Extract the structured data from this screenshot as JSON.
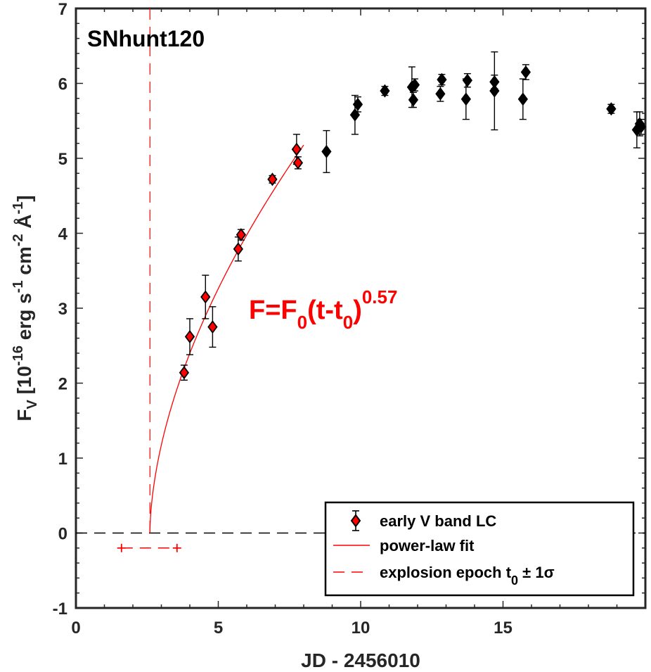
{
  "chart_data": {
    "type": "scatter",
    "title": "SNhunt120",
    "xlabel": "JD - 2456010",
    "ylabel_parts": {
      "main": "F",
      "sub": "V",
      "bracket": " [10",
      "exp1": "-16",
      "unit1": " erg s",
      "exp2": "-1",
      "unit2": " cm",
      "exp3": "-2",
      "unit3": " Å",
      "exp4": "-1",
      "close": "]"
    },
    "xlim": [
      0,
      20
    ],
    "ylim": [
      -1,
      7
    ],
    "xticks": [
      0,
      5,
      10,
      15
    ],
    "yticks": [
      -1,
      0,
      1,
      2,
      3,
      4,
      5,
      6,
      7
    ],
    "early_points": [
      {
        "x": 3.8,
        "y": 2.14,
        "err": 0.1
      },
      {
        "x": 4.0,
        "y": 2.62,
        "err": 0.24
      },
      {
        "x": 4.55,
        "y": 3.15,
        "err": 0.29
      },
      {
        "x": 4.8,
        "y": 2.75,
        "err": 0.27
      },
      {
        "x": 5.7,
        "y": 3.79,
        "err": 0.16
      },
      {
        "x": 5.8,
        "y": 3.98,
        "err": 0.07
      },
      {
        "x": 6.9,
        "y": 4.72,
        "err": 0.05
      },
      {
        "x": 7.75,
        "y": 5.12,
        "err": 0.2
      },
      {
        "x": 7.8,
        "y": 4.94,
        "err": 0.08
      }
    ],
    "late_points": [
      {
        "x": 8.8,
        "y": 5.09,
        "err": 0.28
      },
      {
        "x": 9.8,
        "y": 5.58,
        "err": 0.26
      },
      {
        "x": 9.9,
        "y": 5.72,
        "err": 0.1
      },
      {
        "x": 10.85,
        "y": 5.9,
        "err": 0.06
      },
      {
        "x": 11.8,
        "y": 5.95,
        "err": 0.27
      },
      {
        "x": 11.85,
        "y": 5.78,
        "err": 0.1
      },
      {
        "x": 11.9,
        "y": 5.98,
        "err": 0.08
      },
      {
        "x": 12.8,
        "y": 5.86,
        "err": 0.1
      },
      {
        "x": 12.85,
        "y": 6.05,
        "err": 0.07
      },
      {
        "x": 13.7,
        "y": 5.79,
        "err": 0.27
      },
      {
        "x": 13.75,
        "y": 6.04,
        "err": 0.09
      },
      {
        "x": 14.7,
        "y": 5.9,
        "err": 0.52
      },
      {
        "x": 14.7,
        "y": 6.02,
        "err": 0.09
      },
      {
        "x": 15.7,
        "y": 5.79,
        "err": 0.27
      },
      {
        "x": 15.8,
        "y": 6.15,
        "err": 0.1
      },
      {
        "x": 18.8,
        "y": 5.66,
        "err": 0.06
      },
      {
        "x": 19.7,
        "y": 5.38,
        "err": 0.24
      },
      {
        "x": 19.8,
        "y": 5.46,
        "err": 0.16
      },
      {
        "x": 19.85,
        "y": 5.42,
        "err": 0.1
      }
    ],
    "fit": {
      "t0": 2.6,
      "F0": 1.98,
      "exponent": 0.57,
      "x_end": 8.0
    },
    "explosion_epoch": {
      "t0": 2.6,
      "lower": 1.6,
      "upper": 3.55,
      "y": -0.2
    },
    "zero_line_y": 0,
    "annotation": {
      "prefix": "F=F",
      "sub1": "0",
      "mid": "(t-t",
      "sub2": "0",
      "close": ")",
      "exponent": "0.57"
    },
    "legend": {
      "position": "bottom-right",
      "entries": [
        {
          "label": "early V band LC"
        },
        {
          "label": "power-law fit"
        },
        {
          "label_main": "explosion epoch t",
          "label_sub": "0",
          "label_tail": " ± 1σ"
        }
      ]
    },
    "colors": {
      "early": "#ff0000",
      "late": "#000000",
      "fit": "#ff0000",
      "axis": "#262626"
    }
  }
}
